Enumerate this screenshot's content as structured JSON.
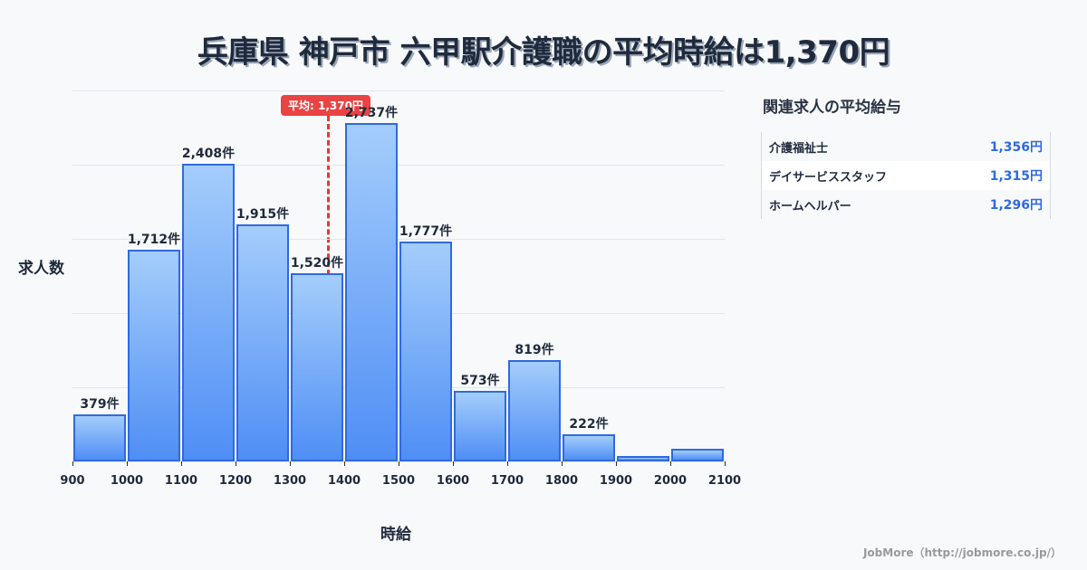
{
  "title": "兵庫県 神戸市 六甲駅介護職の平均時給は1,370円",
  "chart_data": {
    "type": "bar",
    "title": "兵庫県 神戸市 六甲駅介護職の平均時給は1,370円",
    "xlabel": "時給",
    "ylabel": "求人数",
    "categories": [
      "900-1000",
      "1000-1100",
      "1100-1200",
      "1200-1300",
      "1300-1400",
      "1400-1500",
      "1500-1600",
      "1600-1700",
      "1700-1800",
      "1800-1900",
      "1900-2000",
      "2000-2100"
    ],
    "values": [
      379,
      1712,
      2408,
      1915,
      1520,
      2737,
      1777,
      573,
      819,
      222,
      40,
      100
    ],
    "labels": [
      "379件",
      "1,712件",
      "2,408件",
      "1,915件",
      "1,520件",
      "2,737件",
      "1,777件",
      "573件",
      "819件",
      "222件",
      "",
      ""
    ],
    "x_ticks": [
      "900",
      "1000",
      "1100",
      "1200",
      "1300",
      "1400",
      "1500",
      "1600",
      "1700",
      "1800",
      "1900",
      "2000",
      "2100"
    ],
    "ylim": [
      0,
      3000
    ],
    "grid": true,
    "average": {
      "value": 1370,
      "label": "平均: 1,370円"
    }
  },
  "side": {
    "title": "関連求人の平均給与",
    "rows": [
      {
        "name": "介護福祉士",
        "value": "1,356円"
      },
      {
        "name": "デイサービススタッフ",
        "value": "1,315円"
      },
      {
        "name": "ホームヘルパー",
        "value": "1,296円"
      }
    ]
  },
  "footer": "JobMore（http://jobmore.co.jp/）"
}
